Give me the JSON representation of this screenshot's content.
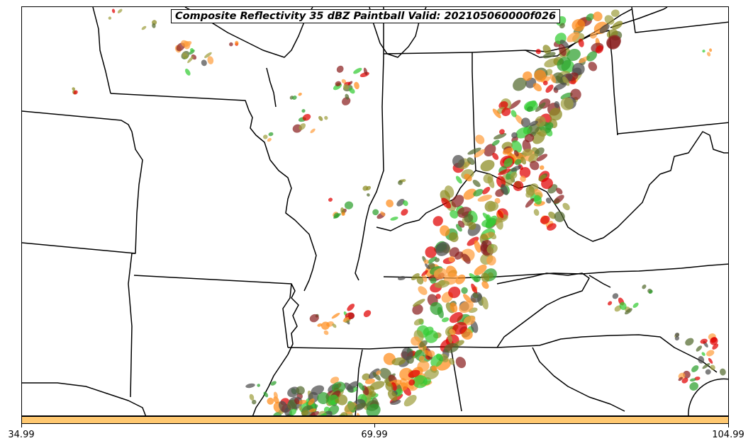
{
  "title": "Composite Reflectivity 35 dBZ Paintball Valid: 202105060000f026",
  "colorbar": {
    "color": "#ffc870",
    "ticks": [
      "34.99",
      "69.99",
      "104.99"
    ]
  },
  "map": {
    "region": "central-eastern-us",
    "paintball_colors": [
      "#e00000",
      "#ff8c1a",
      "#ffa040",
      "#2ca02c",
      "#33cc33",
      "#8a8a20",
      "#a0a040",
      "#8b2020",
      "#4d4d4d",
      "#556b2f"
    ]
  }
}
